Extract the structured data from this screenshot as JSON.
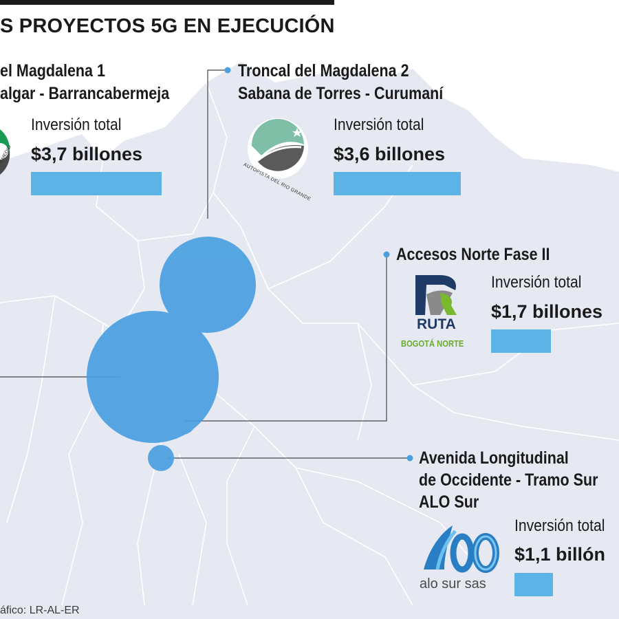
{
  "title": "S PROYECTOS 5G EN EJECUCIÓN",
  "source": "áfico: LR-AL-ER",
  "colors": {
    "bubble": "#4a9fe0",
    "bar": "#5cb3e6",
    "map_fill": "#e6e9f2",
    "map_border": "#ffffff",
    "leader": "#444444"
  },
  "logos": {
    "rio_grande": "AUTOPISTA DEL RIO GRANDE",
    "medio_partial": "A MEDIO",
    "ruta_word": "RUTA",
    "ruta_sub": "BOGOTÁ NORTE",
    "alo_sub": "alo sur sas"
  },
  "chart_data": {
    "type": "bubble",
    "title": "S PROYECTOS 5G EN EJECUCIÓN",
    "value_label": "Inversión total",
    "series": [
      {
        "name_lines": [
          "el Magdalena 1",
          "algar - Barrancabermeja"
        ],
        "value": 3.7,
        "value_text": "$3,7 billones"
      },
      {
        "name_lines": [
          "Troncal del Magdalena 2",
          "Sabana de Torres - Curumaní"
        ],
        "value": 3.6,
        "value_text": "$3,6 billones"
      },
      {
        "name_lines": [
          "Accesos Norte Fase II"
        ],
        "value": 1.7,
        "value_text": "$1,7 billones"
      },
      {
        "name_lines": [
          "Avenida Longitudinal",
          "de Occidente - Tramo Sur",
          "ALO Sur"
        ],
        "value": 1.1,
        "value_text": "$1,1 billón"
      }
    ]
  }
}
